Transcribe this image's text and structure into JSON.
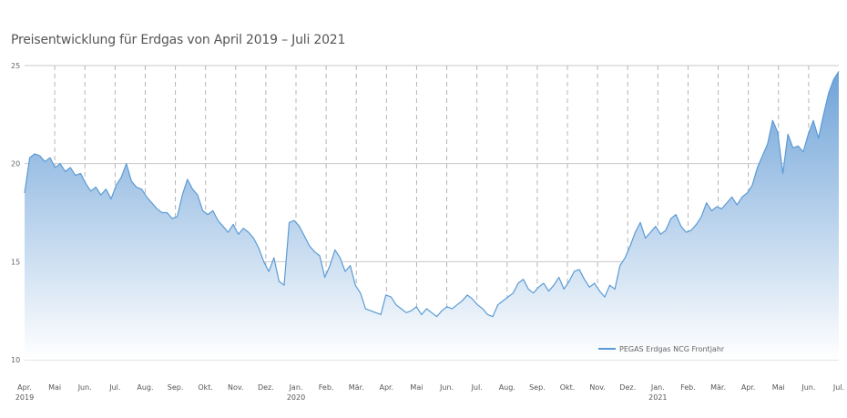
{
  "chart_data": {
    "type": "area",
    "title": "Preisentwicklung für Erdgas von April 2019 – Juli 2021",
    "xlabel": "",
    "ylabel": "",
    "ylim": [
      10,
      25
    ],
    "yticks": [
      "10",
      "15",
      "20",
      "25"
    ],
    "grid": {
      "horizontal": true,
      "vertical_dashed": true
    },
    "legend_position": "bottom-right",
    "colors": {
      "line": "#5b9bd5",
      "fill_top": "#6fa3d8",
      "fill_bottom": "#ffffff"
    },
    "x_labels": [
      {
        "label": "Apr.",
        "year": "2019"
      },
      {
        "label": "Mai",
        "year": ""
      },
      {
        "label": "Jun.",
        "year": ""
      },
      {
        "label": "Jul.",
        "year": ""
      },
      {
        "label": "Aug.",
        "year": ""
      },
      {
        "label": "Sep.",
        "year": ""
      },
      {
        "label": "Okt.",
        "year": ""
      },
      {
        "label": "Nov.",
        "year": ""
      },
      {
        "label": "Dez.",
        "year": ""
      },
      {
        "label": "Jan.",
        "year": "2020"
      },
      {
        "label": "Feb.",
        "year": ""
      },
      {
        "label": "Mär.",
        "year": ""
      },
      {
        "label": "Apr.",
        "year": ""
      },
      {
        "label": "Mai",
        "year": ""
      },
      {
        "label": "Jun.",
        "year": ""
      },
      {
        "label": "Jul.",
        "year": ""
      },
      {
        "label": "Aug.",
        "year": ""
      },
      {
        "label": "Sep.",
        "year": ""
      },
      {
        "label": "Okt.",
        "year": ""
      },
      {
        "label": "Nov.",
        "year": ""
      },
      {
        "label": "Dez.",
        "year": ""
      },
      {
        "label": "Jan.",
        "year": "2021"
      },
      {
        "label": "Feb.",
        "year": ""
      },
      {
        "label": "Mär.",
        "year": ""
      },
      {
        "label": "Apr.",
        "year": ""
      },
      {
        "label": "Mai",
        "year": ""
      },
      {
        "label": "Jun.",
        "year": ""
      },
      {
        "label": "Jul.",
        "year": ""
      }
    ],
    "series": [
      {
        "name": "PEGAS Erdgas NCG Frontjahr",
        "values": [
          18.5,
          20.3,
          20.5,
          20.4,
          20.1,
          20.3,
          19.8,
          20.0,
          19.6,
          19.8,
          19.4,
          19.5,
          19.0,
          18.6,
          18.8,
          18.4,
          18.7,
          18.2,
          18.9,
          19.3,
          20.0,
          19.1,
          18.8,
          18.7,
          18.3,
          18.0,
          17.7,
          17.5,
          17.5,
          17.2,
          17.3,
          18.4,
          19.2,
          18.7,
          18.4,
          17.6,
          17.4,
          17.6,
          17.1,
          16.8,
          16.5,
          16.9,
          16.4,
          16.7,
          16.5,
          16.2,
          15.7,
          15.0,
          14.5,
          15.2,
          14.0,
          13.8,
          17.0,
          17.1,
          16.8,
          16.3,
          15.8,
          15.5,
          15.3,
          14.2,
          14.8,
          15.6,
          15.2,
          14.5,
          14.8,
          13.8,
          13.4,
          12.6,
          12.5,
          12.4,
          12.3,
          13.3,
          13.2,
          12.8,
          12.6,
          12.4,
          12.5,
          12.7,
          12.3,
          12.6,
          12.4,
          12.2,
          12.5,
          12.7,
          12.6,
          12.8,
          13.0,
          13.3,
          13.1,
          12.8,
          12.6,
          12.3,
          12.2,
          12.8,
          13.0,
          13.2,
          13.4,
          13.9,
          14.1,
          13.6,
          13.4,
          13.7,
          13.9,
          13.5,
          13.8,
          14.2,
          13.6,
          14.0,
          14.5,
          14.6,
          14.1,
          13.7,
          13.9,
          13.5,
          13.2,
          13.8,
          13.6,
          14.8,
          15.2,
          15.8,
          16.5,
          17.0,
          16.2,
          16.5,
          16.8,
          16.4,
          16.6,
          17.2,
          17.4,
          16.8,
          16.5,
          16.6,
          16.9,
          17.3,
          18.0,
          17.6,
          17.8,
          17.7,
          18.0,
          18.3,
          17.9,
          18.3,
          18.5,
          18.9,
          19.8,
          20.4,
          21.0,
          22.2,
          21.6,
          19.5,
          21.5,
          20.8,
          20.9,
          20.6,
          21.5,
          22.2,
          21.3,
          22.5,
          23.6,
          24.3,
          24.7
        ]
      }
    ]
  }
}
